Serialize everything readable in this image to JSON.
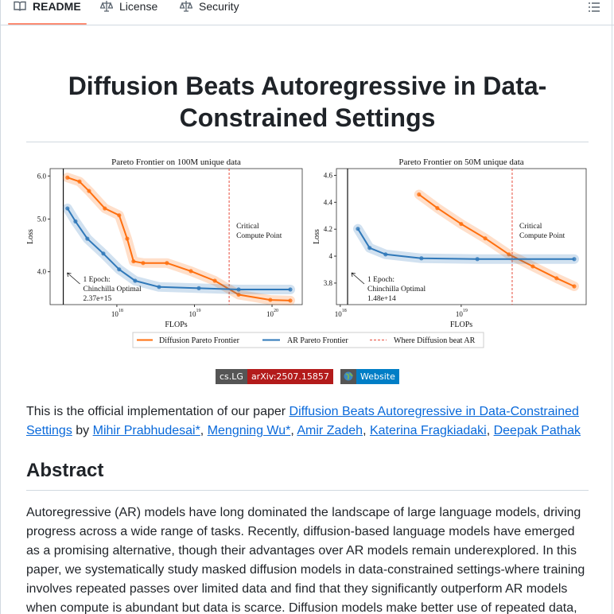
{
  "tabs": [
    "README",
    "License",
    "Security"
  ],
  "title": "Diffusion Beats Autoregressive in Data-Constrained Settings",
  "figure": {
    "legend": [
      "Diffusion Pareto Frontier",
      "AR Pareto Frontier",
      "Where Diffusion beat AR"
    ],
    "charts": [
      {
        "type": "line",
        "title": "Pareto Frontier on 100M unique data",
        "x_label": "FLOPs",
        "y_label": "Loss",
        "xscale": "log",
        "yscale": "log",
        "xlim": [
          1.38e+17,
          2.45e+20
        ],
        "ylim": [
          3.48,
          6.19
        ],
        "xticks": [
          {
            "value": 1e+18,
            "label": "10",
            "exponent": "18"
          },
          {
            "value": 1e+19,
            "label": "10",
            "exponent": "19"
          },
          {
            "value": 1e+20,
            "label": "10",
            "exponent": "20"
          }
        ],
        "yticks": [
          {
            "value": 4,
            "label": "4.0"
          },
          {
            "value": 5,
            "label": "5.0"
          },
          {
            "value": 6,
            "label": "6.0"
          }
        ],
        "epoch_x": 2.04e+17,
        "critical_x": 2.8e+19,
        "annotations": {
          "critical": [
            "Critical",
            "Compute Point"
          ],
          "epoch": [
            "1 Epoch:",
            "Chinchilla Optimal",
            "2.37e+15"
          ]
        },
        "series": [
          {
            "color": "#ff6f0e",
            "x": [
              2.31e+17,
              3.3e+17,
              4.38e+17,
              7e+17,
              1.07e+18,
              1.36e+18,
              1.64e+18,
              2.18e+18,
              4.42e+18,
              9e+18,
              1.83e+19,
              3.71e+19,
              9.5e+19,
              1.72e+20
            ],
            "values": [
              5.96,
              5.86,
              5.63,
              5.23,
              5.08,
              4.6,
              4.18,
              4.15,
              4.15,
              4.01,
              3.85,
              3.63,
              3.55,
              3.54
            ]
          },
          {
            "color": "#2f78b9",
            "x": [
              2.31e+17,
              2.93e+17,
              4.17e+17,
              6.7e+17,
              1.07e+18,
              1.72e+18,
              3.5e+18,
              1.14e+19,
              3.71e+19,
              1.72e+20
            ],
            "values": [
              5.23,
              4.95,
              4.6,
              4.32,
              4.04,
              3.85,
              3.75,
              3.73,
              3.71,
              3.71
            ]
          }
        ]
      },
      {
        "type": "line",
        "title": "Pareto Frontier on 50M unique data",
        "x_label": "FLOPs",
        "y_label": "Loss",
        "xscale": "log",
        "xlim": [
          9.3e+17,
          1.08e+20
        ],
        "ylim": [
          3.64,
          4.65
        ],
        "xticks": [
          {
            "value": 1e+18,
            "label": "10",
            "exponent": "18"
          },
          {
            "value": 1e+19,
            "label": "10",
            "exponent": "19"
          }
        ],
        "yticks": [
          3.8,
          4.0,
          4.2,
          4.4,
          4.6
        ],
        "epoch_x": 1.15e+18,
        "critical_x": 2.64e+19,
        "annotations": {
          "critical": [
            "Critical",
            "Compute Point"
          ],
          "epoch": [
            "1 Epoch:",
            "Chinchilla Optimal",
            "1.48e+14"
          ]
        },
        "series": [
          {
            "color": "#ff6f0e",
            "x": [
              4.48e+18,
              6.35e+18,
              1e+19,
              1.58e+19,
              2.48e+19,
              3.91e+19,
              6.15e+19,
              8.6e+19
            ],
            "values": [
              4.458,
              4.357,
              4.239,
              4.132,
              4.013,
              3.924,
              3.836,
              3.776
            ]
          },
          {
            "color": "#2f78b9",
            "x": [
              1.4e+18,
              1.75e+18,
              2.37e+18,
              4.69e+18,
              1.36e+19,
              8.6e+19
            ],
            "values": [
              4.203,
              4.061,
              4.013,
              3.984,
              3.978,
              3.978
            ]
          }
        ]
      }
    ]
  },
  "badges": [
    [
      "cs.LG",
      "arXiv:2507.15857"
    ],
    [
      "Website"
    ]
  ],
  "intro": [
    {
      "text": "This is the official implementation of our paper "
    },
    {
      "text": "Diffusion Beats Autoregressive in Data-Constrained Settings",
      "link": true
    },
    {
      "text": " by "
    },
    {
      "text": "Mihir Prabhudesai*",
      "link": true
    },
    {
      "text": ", "
    },
    {
      "text": "Mengning Wu*",
      "link": true
    },
    {
      "text": ", "
    },
    {
      "text": "Amir Zadeh",
      "link": true
    },
    {
      "text": ", "
    },
    {
      "text": "Katerina Fragkiadaki",
      "link": true
    },
    {
      "text": ", "
    },
    {
      "text": "Deepak Pathak",
      "link": true
    }
  ],
  "abstract": {
    "heading": "Abstract",
    "text": "Autoregressive (AR) models have long dominated the landscape of large language models, driving progress across a wide range of tasks. Recently, diffusion-based language models have emerged as a promising alternative, though their advantages over AR models remain underexplored. In this paper, we systematically study masked diffusion models in data-constrained settings-where training involves repeated passes over limited data and find that they significantly outperform AR models when compute is abundant but data is scarce. Diffusion models make better use of repeated data,"
  }
}
